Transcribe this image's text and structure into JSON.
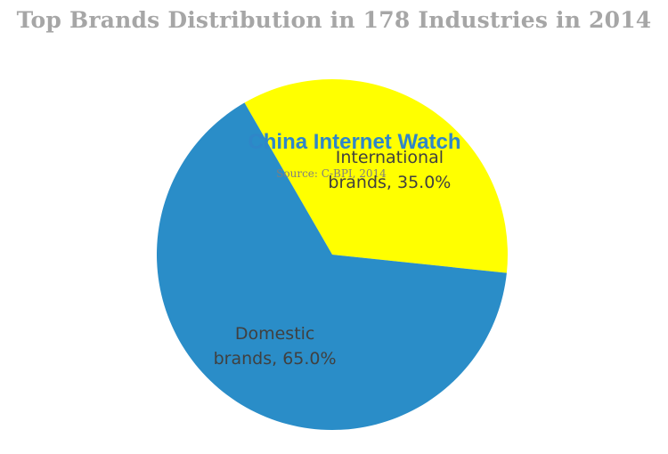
{
  "chart_data": {
    "type": "pie",
    "title": "Top Brands Distribution in 178 Industries in 2014",
    "slices": [
      {
        "label_line1": "International",
        "label_line2": "brands, 35.0%",
        "value": 35.0,
        "color": "#ffff00"
      },
      {
        "label_line1": "Domestic",
        "label_line2": "brands, 65.0%",
        "value": 65.0,
        "color": "#2a8dc8"
      }
    ]
  },
  "watermark": {
    "brand": "China Internet Watch",
    "source": "Source: C-BPI, 2014"
  }
}
